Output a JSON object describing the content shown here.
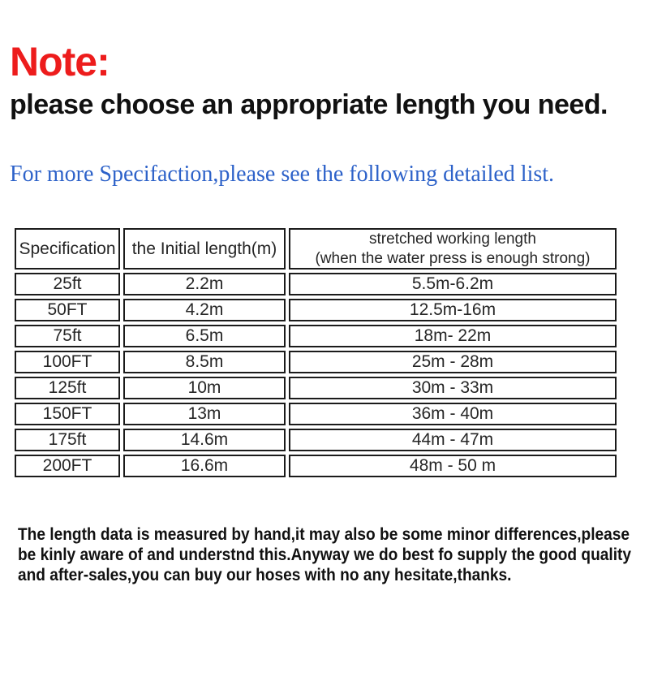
{
  "colors": {
    "note_red": "#ed1c1c",
    "info_blue": "#2d62c9"
  },
  "note": {
    "title": "Note:",
    "subtitle": "please choose an appropriate length you need."
  },
  "info": {
    "line": "For more Specifaction,please see the following detailed list."
  },
  "table": {
    "headers": {
      "specification": "Specification",
      "initial_length": "the Initial length(m)",
      "stretched_line1": "stretched working length",
      "stretched_line2": "(when the water press is enough strong)"
    },
    "rows": [
      [
        "25ft",
        "2.2m",
        "5.5m-6.2m"
      ],
      [
        "50FT",
        "4.2m",
        "12.5m-16m"
      ],
      [
        "75ft",
        "6.5m",
        "18m- 22m"
      ],
      [
        "100FT",
        "8.5m",
        "25m - 28m"
      ],
      [
        "125ft",
        "10m",
        "30m - 33m"
      ],
      [
        "150FT",
        "13m",
        "36m - 40m"
      ],
      [
        "175ft",
        "14.6m",
        "44m - 47m"
      ],
      [
        "200FT",
        "16.6m",
        "48m - 50 m"
      ]
    ]
  },
  "footer": {
    "lines": [
      "The length data is measured by hand,it may also be some minor differences,please",
      "be kinly aware of and understnd this.Anyway we do best fo supply the good quality",
      "and after-sales,you can buy our hoses with no any hesitate,thanks."
    ]
  }
}
